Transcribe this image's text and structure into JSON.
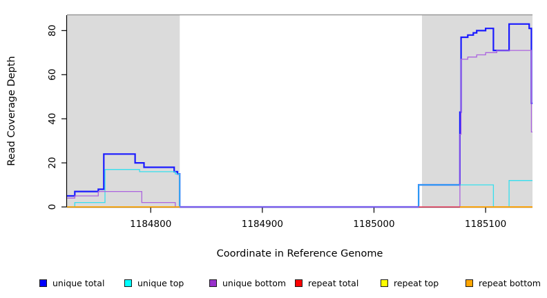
{
  "chart_data": {
    "type": "line",
    "step": "after",
    "title": "",
    "xlabel": "Coordinate in Reference Genome",
    "ylabel": "Read Coverage Depth",
    "xlim": [
      1184725,
      1185142
    ],
    "ylim": [
      0,
      87
    ],
    "x_ticks": [
      1184800,
      1184900,
      1185000,
      1185100
    ],
    "y_ticks": [
      0,
      20,
      40,
      60,
      80
    ],
    "grid": false,
    "legend_position": "bottom",
    "background_shading": {
      "color": "#DBDBDB",
      "top_border_color": "#999999",
      "regions": [
        [
          1184725,
          1184826
        ],
        [
          1185043,
          1185142
        ]
      ]
    },
    "series": [
      {
        "name": "unique total",
        "color": "#0000FF",
        "line_color": "#1A1AFF",
        "line_width": 2.2,
        "segments": [
          [
            [
              1184725,
              5
            ],
            [
              1184732,
              7
            ],
            [
              1184753,
              8
            ],
            [
              1184758,
              24
            ],
            [
              1184786,
              20
            ],
            [
              1184794,
              18
            ],
            [
              1184821,
              16
            ],
            [
              1184824,
              15
            ],
            [
              1184826,
              0
            ],
            [
              1185040,
              10
            ],
            [
              1185077,
              43
            ],
            [
              1185078,
              77
            ],
            [
              1185084,
              78
            ],
            [
              1185089,
              79
            ],
            [
              1185092,
              80
            ],
            [
              1185100,
              81
            ],
            [
              1185107,
              71
            ],
            [
              1185121,
              83
            ],
            [
              1185139,
              81
            ],
            [
              1185141,
              47
            ],
            [
              1185142,
              47
            ]
          ]
        ]
      },
      {
        "name": "unique top",
        "color": "#00FFFF",
        "line_color": "#35DFEE",
        "line_width": 1.3,
        "segments": [
          [
            [
              1184725,
              0
            ],
            [
              1184732,
              2
            ],
            [
              1184759,
              17
            ],
            [
              1184790,
              16
            ],
            [
              1184822,
              15
            ],
            [
              1184826,
              0
            ],
            [
              1185040,
              10
            ],
            [
              1185107,
              0
            ],
            [
              1185121,
              12
            ],
            [
              1185142,
              12
            ]
          ]
        ]
      },
      {
        "name": "unique bottom",
        "color": "#9932CC",
        "line_color": "#AB63DF",
        "line_width": 1.3,
        "segments": [
          [
            [
              1184725,
              4
            ],
            [
              1184732,
              5
            ],
            [
              1184753,
              7
            ],
            [
              1184792,
              2
            ],
            [
              1184822,
              0
            ],
            [
              1185077,
              33
            ],
            [
              1185078,
              67
            ],
            [
              1185084,
              68
            ],
            [
              1185092,
              69
            ],
            [
              1185100,
              70
            ],
            [
              1185110,
              71
            ],
            [
              1185141,
              34
            ],
            [
              1185142,
              34
            ]
          ]
        ]
      },
      {
        "name": "repeat total",
        "color": "#FF0000",
        "line_color": "#F0455C",
        "line_width": 1.4,
        "segments": [
          [
            [
              1185040,
              0
            ],
            [
              1185142,
              0
            ]
          ]
        ]
      },
      {
        "name": "repeat top",
        "color": "#FFFF00",
        "line_color": "#FFFF00",
        "line_width": 1.2,
        "segments": [
          [
            [
              1185077,
              0
            ],
            [
              1185142,
              0
            ]
          ]
        ]
      },
      {
        "name": "repeat bottom",
        "color": "#FFA500",
        "line_color": "#FFA500",
        "line_width": 1.8,
        "segments": [
          [
            [
              1184725,
              0
            ],
            [
              1184826,
              0
            ]
          ],
          [
            [
              1185077,
              0
            ],
            [
              1185142,
              0
            ]
          ]
        ]
      }
    ]
  }
}
